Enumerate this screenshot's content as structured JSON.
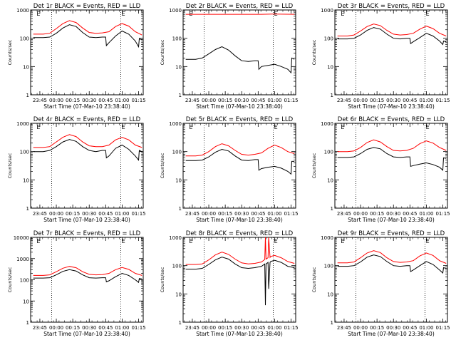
{
  "x_tick_labels": [
    "23:45",
    "00:00",
    "00:15",
    "00:30",
    "00:45",
    "01:00",
    "01:15"
  ],
  "x_ticks_hours": [
    -0.25,
    0,
    0.25,
    0.5,
    0.75,
    1.0,
    1.25
  ],
  "x_range_hours": [
    -0.39,
    1.32
  ],
  "xlabel": "Start Time (07-Mar-10 23:38:40)",
  "ylabel": "Counts/sec",
  "colors": {
    "events": "#000000",
    "lld": "#ff0000",
    "axes": "#000000",
    "marker": "#000000"
  },
  "marker_label": "E",
  "chart_data": [
    {
      "type": "line",
      "title": "Det 1r BLACK = Events, RED = LLD",
      "ylim": [
        1,
        1000
      ],
      "yscale": "log",
      "y_tick_labels": [
        "1",
        "10",
        "100",
        "1000"
      ],
      "y_ticks": [
        1,
        10,
        100,
        1000
      ],
      "vlines_hours": [
        -0.07,
        0.98
      ],
      "markers_hours": [
        -0.31,
        0.98
      ],
      "series": [
        {
          "name": "Events",
          "x": [
            -0.35,
            -0.2,
            -0.1,
            0.0,
            0.1,
            0.2,
            0.3,
            0.4,
            0.5,
            0.6,
            0.7,
            0.75,
            0.76,
            0.8,
            0.9,
            1.0,
            1.1,
            1.2,
            1.25,
            1.26,
            1.3
          ],
          "y": [
            105,
            105,
            110,
            150,
            230,
            300,
            260,
            160,
            110,
            105,
            110,
            110,
            55,
            70,
            120,
            180,
            140,
            80,
            50,
            95,
            90
          ]
        },
        {
          "name": "LLD",
          "x": [
            -0.35,
            -0.2,
            -0.1,
            0.0,
            0.1,
            0.2,
            0.3,
            0.4,
            0.5,
            0.6,
            0.7,
            0.8,
            0.9,
            1.0,
            1.1,
            1.2,
            1.3
          ],
          "y": [
            140,
            140,
            150,
            220,
            330,
            420,
            360,
            230,
            160,
            150,
            155,
            170,
            260,
            330,
            270,
            170,
            130
          ]
        }
      ]
    },
    {
      "type": "line",
      "title": "Det 2r BLACK = Events, RED = LLD",
      "ylim": [
        1,
        1000
      ],
      "yscale": "log",
      "y_tick_labels": [
        "1",
        "10",
        "100",
        "1000"
      ],
      "y_ticks": [
        1,
        10,
        100,
        1000
      ],
      "vlines_hours": [
        -0.07,
        0.98
      ],
      "markers_hours": [
        -0.31,
        0.98
      ],
      "series": [
        {
          "name": "Events",
          "x": [
            -0.35,
            -0.2,
            -0.1,
            0.0,
            0.1,
            0.2,
            0.3,
            0.4,
            0.5,
            0.6,
            0.7,
            0.75,
            0.76,
            0.8,
            0.9,
            1.0,
            1.1,
            1.2,
            1.25,
            1.26,
            1.3
          ],
          "y": [
            18,
            18,
            20,
            28,
            40,
            50,
            38,
            24,
            16,
            15,
            16,
            16,
            8,
            10,
            11,
            12,
            10,
            8,
            6,
            20,
            18
          ]
        },
        {
          "name": "LLD",
          "x": [
            -0.35,
            0.0,
            0.4,
            0.8,
            1.0,
            1.3
          ],
          "y": [
            700,
            700,
            700,
            700,
            720,
            700
          ]
        }
      ]
    },
    {
      "type": "line",
      "title": "Det 3r BLACK = Events, RED = LLD",
      "ylim": [
        1,
        1000
      ],
      "yscale": "log",
      "y_tick_labels": [
        "1",
        "10",
        "100",
        "1000"
      ],
      "y_ticks": [
        1,
        10,
        100,
        1000
      ],
      "vlines_hours": [
        -0.07,
        0.98
      ],
      "markers_hours": [
        -0.31,
        0.98
      ],
      "series": [
        {
          "name": "Events",
          "x": [
            -0.35,
            -0.2,
            -0.1,
            0.0,
            0.1,
            0.2,
            0.3,
            0.4,
            0.5,
            0.6,
            0.7,
            0.75,
            0.76,
            0.8,
            0.9,
            1.0,
            1.1,
            1.2,
            1.25,
            1.26,
            1.3
          ],
          "y": [
            95,
            95,
            100,
            130,
            190,
            240,
            210,
            140,
            100,
            95,
            100,
            100,
            65,
            75,
            105,
            150,
            120,
            80,
            60,
            80,
            75
          ]
        },
        {
          "name": "LLD",
          "x": [
            -0.35,
            -0.2,
            -0.1,
            0.0,
            0.1,
            0.2,
            0.3,
            0.4,
            0.5,
            0.6,
            0.7,
            0.8,
            0.9,
            1.0,
            1.1,
            1.2,
            1.3
          ],
          "y": [
            120,
            120,
            130,
            180,
            260,
            320,
            280,
            190,
            140,
            130,
            135,
            150,
            210,
            270,
            220,
            150,
            120
          ]
        }
      ]
    },
    {
      "type": "line",
      "title": "Det 4r BLACK = Events, RED = LLD",
      "ylim": [
        1,
        1000
      ],
      "yscale": "log",
      "y_tick_labels": [
        "1",
        "10",
        "100",
        "1000"
      ],
      "y_ticks": [
        1,
        10,
        100,
        1000
      ],
      "vlines_hours": [
        -0.07,
        0.98
      ],
      "markers_hours": [
        -0.31,
        0.98
      ],
      "series": [
        {
          "name": "Events",
          "x": [
            -0.35,
            -0.2,
            -0.1,
            0.0,
            0.1,
            0.2,
            0.3,
            0.4,
            0.5,
            0.6,
            0.7,
            0.75,
            0.76,
            0.8,
            0.9,
            1.0,
            1.1,
            1.2,
            1.25,
            1.26,
            1.3
          ],
          "y": [
            100,
            100,
            110,
            150,
            220,
            270,
            230,
            150,
            110,
            100,
            110,
            110,
            60,
            70,
            130,
            170,
            120,
            70,
            50,
            110,
            100
          ]
        },
        {
          "name": "LLD",
          "x": [
            -0.35,
            -0.2,
            -0.1,
            0.0,
            0.1,
            0.2,
            0.3,
            0.4,
            0.5,
            0.6,
            0.7,
            0.8,
            0.9,
            1.0,
            1.1,
            1.2,
            1.3
          ],
          "y": [
            140,
            140,
            150,
            220,
            320,
            400,
            340,
            220,
            160,
            150,
            150,
            170,
            260,
            320,
            260,
            170,
            140
          ]
        }
      ]
    },
    {
      "type": "line",
      "title": "Det 5r BLACK = Events, RED = LLD",
      "ylim": [
        1,
        1000
      ],
      "yscale": "log",
      "y_tick_labels": [
        "1",
        "10",
        "100",
        "1000"
      ],
      "y_ticks": [
        1,
        10,
        100,
        1000
      ],
      "vlines_hours": [
        -0.07,
        0.98
      ],
      "markers_hours": [
        -0.31,
        0.98
      ],
      "series": [
        {
          "name": "Events",
          "x": [
            -0.35,
            -0.2,
            -0.1,
            0.0,
            0.1,
            0.2,
            0.3,
            0.4,
            0.5,
            0.6,
            0.7,
            0.75,
            0.76,
            0.8,
            0.9,
            1.0,
            1.1,
            1.2,
            1.25,
            1.26,
            1.3
          ],
          "y": [
            48,
            48,
            50,
            65,
            95,
            120,
            105,
            70,
            50,
            48,
            52,
            52,
            22,
            25,
            28,
            30,
            26,
            20,
            16,
            45,
            45
          ]
        },
        {
          "name": "LLD",
          "x": [
            -0.35,
            -0.2,
            -0.1,
            0.0,
            0.1,
            0.2,
            0.3,
            0.4,
            0.5,
            0.6,
            0.7,
            0.8,
            0.9,
            1.0,
            1.1,
            1.2,
            1.3
          ],
          "y": [
            70,
            70,
            75,
            100,
            150,
            190,
            160,
            110,
            80,
            75,
            80,
            90,
            130,
            170,
            140,
            100,
            85
          ]
        }
      ]
    },
    {
      "type": "line",
      "title": "Det 6r BLACK = Events, RED = LLD",
      "ylim": [
        1,
        1000
      ],
      "yscale": "log",
      "y_tick_labels": [
        "1",
        "10",
        "100",
        "1000"
      ],
      "y_ticks": [
        1,
        10,
        100,
        1000
      ],
      "vlines_hours": [
        -0.07,
        0.98
      ],
      "markers_hours": [
        -0.31,
        0.98
      ],
      "series": [
        {
          "name": "Events",
          "x": [
            -0.35,
            -0.2,
            -0.1,
            0.0,
            0.1,
            0.2,
            0.3,
            0.4,
            0.5,
            0.6,
            0.7,
            0.75,
            0.76,
            0.8,
            0.9,
            1.0,
            1.1,
            1.2,
            1.25,
            1.26,
            1.3
          ],
          "y": [
            62,
            62,
            65,
            85,
            120,
            140,
            125,
            85,
            65,
            62,
            65,
            65,
            30,
            32,
            36,
            40,
            35,
            28,
            22,
            60,
            58
          ]
        },
        {
          "name": "LLD",
          "x": [
            -0.35,
            -0.2,
            -0.1,
            0.0,
            0.1,
            0.2,
            0.3,
            0.4,
            0.5,
            0.6,
            0.7,
            0.8,
            0.9,
            1.0,
            1.1,
            1.2,
            1.3
          ],
          "y": [
            100,
            100,
            105,
            140,
            210,
            260,
            220,
            150,
            110,
            105,
            110,
            130,
            190,
            240,
            200,
            140,
            110
          ]
        }
      ]
    },
    {
      "type": "line",
      "title": "Det 7r BLACK = Events, RED = LLD",
      "ylim": [
        1,
        10000
      ],
      "yscale": "log",
      "y_tick_labels": [
        "1",
        "10",
        "100",
        "1000",
        "10000"
      ],
      "y_ticks": [
        1,
        10,
        100,
        1000,
        10000
      ],
      "vlines_hours": [
        -0.07,
        0.98
      ],
      "markers_hours": [
        -0.31,
        0.98
      ],
      "series": [
        {
          "name": "Events",
          "x": [
            -0.35,
            -0.2,
            -0.1,
            0.0,
            0.1,
            0.2,
            0.3,
            0.4,
            0.5,
            0.6,
            0.7,
            0.75,
            0.76,
            0.8,
            0.9,
            1.0,
            1.1,
            1.2,
            1.25,
            1.26,
            1.3
          ],
          "y": [
            120,
            120,
            125,
            170,
            250,
            300,
            260,
            170,
            125,
            120,
            125,
            125,
            80,
            90,
            140,
            200,
            160,
            100,
            75,
            115,
            110
          ]
        },
        {
          "name": "LLD",
          "x": [
            -0.35,
            -0.2,
            -0.1,
            0.0,
            0.1,
            0.2,
            0.3,
            0.4,
            0.5,
            0.6,
            0.7,
            0.8,
            0.9,
            1.0,
            1.1,
            1.2,
            1.3
          ],
          "y": [
            160,
            160,
            170,
            240,
            350,
            430,
            370,
            240,
            180,
            170,
            175,
            200,
            300,
            380,
            310,
            200,
            160
          ]
        }
      ]
    },
    {
      "type": "line",
      "title": "Det 8r BLACK = Events, RED = LLD",
      "ylim": [
        1,
        1000
      ],
      "yscale": "log",
      "y_tick_labels": [
        "1",
        "10",
        "100",
        "1000"
      ],
      "y_ticks": [
        1,
        10,
        100,
        1000
      ],
      "vlines_hours": [
        -0.07,
        0.98
      ],
      "markers_hours": [
        -0.31,
        0.98
      ],
      "series": [
        {
          "name": "Events",
          "x": [
            -0.35,
            -0.2,
            -0.1,
            0.0,
            0.1,
            0.2,
            0.3,
            0.4,
            0.5,
            0.6,
            0.7,
            0.8,
            0.85,
            0.86,
            0.87,
            0.9,
            0.91,
            0.93,
            0.94,
            1.0,
            1.1,
            1.2,
            1.3
          ],
          "y": [
            75,
            75,
            80,
            110,
            160,
            200,
            170,
            115,
            85,
            80,
            85,
            95,
            115,
            4,
            115,
            130,
            15,
            130,
            140,
            155,
            130,
            95,
            85
          ]
        },
        {
          "name": "LLD",
          "x": [
            -0.35,
            -0.2,
            -0.1,
            0.0,
            0.1,
            0.2,
            0.3,
            0.4,
            0.5,
            0.6,
            0.7,
            0.8,
            0.85,
            0.86,
            0.87,
            0.9,
            0.91,
            0.93,
            0.94,
            1.0,
            1.1,
            1.2,
            1.3
          ],
          "y": [
            110,
            110,
            115,
            160,
            240,
            300,
            250,
            170,
            125,
            115,
            120,
            135,
            165,
            1000,
            170,
            190,
            1000,
            195,
            210,
            230,
            190,
            140,
            120
          ]
        }
      ]
    },
    {
      "type": "line",
      "title": "Det 9r BLACK = Events, RED = LLD",
      "ylim": [
        1,
        1000
      ],
      "yscale": "log",
      "y_tick_labels": [
        "1",
        "10",
        "100",
        "1000"
      ],
      "y_ticks": [
        1,
        10,
        100,
        1000
      ],
      "vlines_hours": [
        -0.07,
        0.98
      ],
      "markers_hours": [
        -0.31,
        0.98
      ],
      "series": [
        {
          "name": "Events",
          "x": [
            -0.35,
            -0.2,
            -0.1,
            0.0,
            0.1,
            0.2,
            0.3,
            0.4,
            0.5,
            0.6,
            0.7,
            0.75,
            0.76,
            0.8,
            0.9,
            1.0,
            1.1,
            1.2,
            1.25,
            1.26,
            1.3
          ],
          "y": [
            95,
            95,
            100,
            135,
            200,
            240,
            210,
            140,
            100,
            95,
            100,
            100,
            62,
            70,
            100,
            140,
            110,
            70,
            55,
            85,
            80
          ]
        },
        {
          "name": "LLD",
          "x": [
            -0.35,
            -0.2,
            -0.1,
            0.0,
            0.1,
            0.2,
            0.3,
            0.4,
            0.5,
            0.6,
            0.7,
            0.8,
            0.9,
            1.0,
            1.1,
            1.2,
            1.3
          ],
          "y": [
            125,
            125,
            135,
            190,
            280,
            340,
            290,
            190,
            140,
            130,
            135,
            150,
            220,
            280,
            230,
            150,
            120
          ]
        }
      ]
    }
  ]
}
